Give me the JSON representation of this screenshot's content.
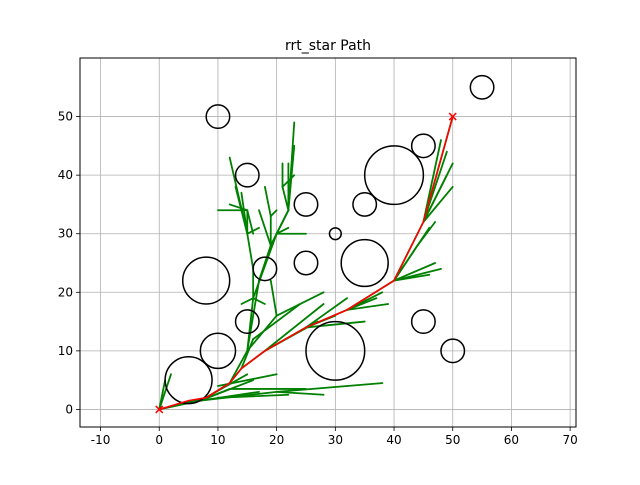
{
  "chart_data": {
    "type": "scatter",
    "title": "rrt_star Path",
    "xlabel": "",
    "ylabel": "",
    "xlim": [
      -13.5,
      71
    ],
    "ylim": [
      -3,
      60
    ],
    "grid": true,
    "legend": "none",
    "xticks": [
      -10,
      0,
      10,
      20,
      30,
      40,
      50,
      60,
      70
    ],
    "yticks": [
      0,
      10,
      20,
      30,
      40,
      50
    ],
    "start": {
      "x": 0,
      "y": 0,
      "marker": "x",
      "color": "#ff0000"
    },
    "goal": {
      "x": 50,
      "y": 50,
      "marker": "x",
      "color": "#ff0000"
    },
    "obstacles": [
      {
        "x": 5,
        "y": 5,
        "r": 4
      },
      {
        "x": 10,
        "y": 10,
        "r": 3
      },
      {
        "x": 15,
        "y": 15,
        "r": 2
      },
      {
        "x": 8,
        "y": 22,
        "r": 4
      },
      {
        "x": 18,
        "y": 24,
        "r": 2
      },
      {
        "x": 25,
        "y": 25,
        "r": 2
      },
      {
        "x": 30,
        "y": 10,
        "r": 5
      },
      {
        "x": 35,
        "y": 25,
        "r": 4
      },
      {
        "x": 30,
        "y": 30,
        "r": 1
      },
      {
        "x": 25,
        "y": 35,
        "r": 2
      },
      {
        "x": 35,
        "y": 35,
        "r": 2
      },
      {
        "x": 40,
        "y": 40,
        "r": 5
      },
      {
        "x": 45,
        "y": 45,
        "r": 2
      },
      {
        "x": 45,
        "y": 15,
        "r": 2
      },
      {
        "x": 50,
        "y": 10,
        "r": 2
      },
      {
        "x": 55,
        "y": 55,
        "r": 2
      },
      {
        "x": 15,
        "y": 40,
        "r": 2
      },
      {
        "x": 10,
        "y": 50,
        "r": 2
      }
    ],
    "tree_edges": [
      [
        0,
        0,
        7,
        1.5
      ],
      [
        7,
        1.5,
        12,
        3.5
      ],
      [
        7,
        1.5,
        20,
        3
      ],
      [
        20,
        3,
        28,
        2.5
      ],
      [
        20,
        3,
        32,
        4
      ],
      [
        32,
        4,
        38,
        4.5
      ],
      [
        12,
        3.5,
        25,
        3.5
      ],
      [
        7,
        1.5,
        17,
        3
      ],
      [
        10,
        2,
        22,
        2.5
      ],
      [
        0,
        0,
        1,
        5
      ],
      [
        0,
        0,
        2,
        6
      ],
      [
        7,
        1.5,
        15,
        6
      ],
      [
        7,
        1.5,
        16,
        5
      ],
      [
        10,
        4,
        20,
        6
      ],
      [
        0,
        0,
        8,
        2
      ],
      [
        8,
        2,
        12,
        4.5
      ],
      [
        12,
        4.5,
        14,
        7
      ],
      [
        14,
        7,
        18,
        10
      ],
      [
        18,
        10,
        25,
        14
      ],
      [
        25,
        14,
        32,
        17
      ],
      [
        32,
        17,
        40,
        22
      ],
      [
        40,
        22,
        45,
        32
      ],
      [
        45,
        32,
        50,
        50
      ],
      [
        12,
        4.5,
        15,
        10
      ],
      [
        14,
        7,
        16,
        12
      ],
      [
        15,
        10,
        20,
        16
      ],
      [
        16,
        12,
        24,
        18
      ],
      [
        18,
        10,
        27,
        15
      ],
      [
        18,
        10,
        28,
        18
      ],
      [
        20,
        16,
        28,
        20
      ],
      [
        25,
        14,
        32,
        19
      ],
      [
        25,
        14,
        35,
        15
      ],
      [
        25,
        14,
        30,
        16
      ],
      [
        32,
        17,
        38,
        20
      ],
      [
        32,
        17,
        39,
        18
      ],
      [
        32,
        17,
        37,
        19
      ],
      [
        40,
        22,
        46,
        23
      ],
      [
        40,
        22,
        48,
        24
      ],
      [
        40,
        22,
        47,
        25
      ],
      [
        40,
        22,
        44,
        28
      ],
      [
        40,
        22,
        46,
        31
      ],
      [
        44,
        28,
        47,
        32
      ],
      [
        45,
        32,
        50,
        42
      ],
      [
        45,
        32,
        49,
        44
      ],
      [
        45,
        32,
        48,
        46
      ],
      [
        45,
        32,
        50,
        38
      ],
      [
        45,
        32,
        49,
        40
      ],
      [
        15,
        10,
        16,
        19
      ],
      [
        15,
        10,
        17,
        22
      ],
      [
        16,
        19,
        16,
        24
      ],
      [
        16,
        19,
        20,
        30
      ],
      [
        20,
        30,
        23,
        30
      ],
      [
        20,
        30,
        22,
        31
      ],
      [
        16,
        19,
        14,
        18
      ],
      [
        16,
        19,
        18,
        18
      ],
      [
        20,
        16,
        19,
        22
      ],
      [
        17,
        22,
        19,
        28
      ],
      [
        19,
        28,
        19,
        33
      ],
      [
        19,
        33,
        18,
        38
      ],
      [
        19,
        33,
        20,
        34
      ],
      [
        19,
        28,
        17,
        34
      ],
      [
        16,
        24,
        15,
        30
      ],
      [
        15,
        30,
        15,
        34
      ],
      [
        15,
        34,
        10,
        34
      ],
      [
        15,
        34,
        12,
        35
      ],
      [
        15,
        34,
        16,
        30
      ],
      [
        15,
        30,
        12,
        43
      ],
      [
        15,
        30,
        13,
        38
      ],
      [
        15,
        30,
        17,
        31
      ],
      [
        15,
        30,
        14,
        37
      ],
      [
        19,
        28,
        20,
        30
      ],
      [
        20,
        30,
        22,
        34
      ],
      [
        22,
        34,
        23,
        49
      ],
      [
        22,
        34,
        21,
        38
      ],
      [
        22,
        34,
        23,
        45
      ],
      [
        22,
        34,
        22,
        42
      ],
      [
        21,
        38,
        23,
        40
      ],
      [
        22,
        34,
        20,
        30
      ],
      [
        23,
        30,
        25,
        30
      ],
      [
        21,
        38,
        21,
        42
      ]
    ],
    "path": [
      [
        0,
        0
      ],
      [
        5,
        1.5
      ],
      [
        8,
        2
      ],
      [
        12,
        4.5
      ],
      [
        14,
        7
      ],
      [
        18,
        10
      ],
      [
        25,
        14
      ],
      [
        32,
        17
      ],
      [
        40,
        22
      ],
      [
        45,
        32
      ],
      [
        50,
        50
      ]
    ]
  }
}
